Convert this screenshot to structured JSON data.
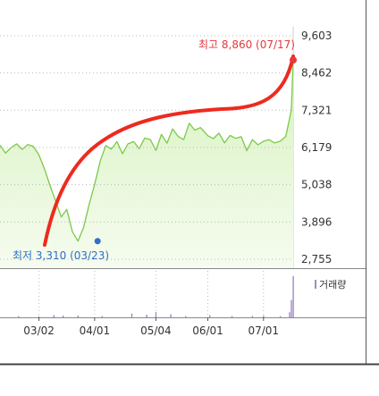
{
  "chart_data": {
    "type": "area",
    "title": "",
    "xlabel": "",
    "ylabel": "",
    "x_ticks": [
      "03/02",
      "04/01",
      "05/04",
      "06/01",
      "07/01"
    ],
    "y_ticks": [
      "9,603",
      "8,462",
      "7,321",
      "6,179",
      "5,038",
      "3,896",
      "2,755"
    ],
    "ylim": [
      2755,
      9603
    ],
    "price": {
      "dates": [
        "02/10",
        "02/13",
        "02/16",
        "02/19",
        "02/22",
        "02/25",
        "02/28",
        "03/02",
        "03/05",
        "03/08",
        "03/11",
        "03/14",
        "03/17",
        "03/20",
        "03/23",
        "03/26",
        "03/29",
        "04/01",
        "04/04",
        "04/07",
        "04/10",
        "04/13",
        "04/16",
        "04/19",
        "04/22",
        "04/25",
        "04/28",
        "05/01",
        "05/04",
        "05/07",
        "05/10",
        "05/13",
        "05/16",
        "05/19",
        "05/22",
        "05/25",
        "05/28",
        "06/01",
        "06/04",
        "06/07",
        "06/10",
        "06/13",
        "06/16",
        "06/19",
        "06/22",
        "06/25",
        "06/28",
        "07/01",
        "07/04",
        "07/07",
        "07/10",
        "07/13",
        "07/16",
        "07/17"
      ],
      "values": [
        6250,
        6010,
        6180,
        6290,
        6120,
        6270,
        6210,
        5950,
        5520,
        5000,
        4530,
        4050,
        4280,
        3600,
        3310,
        3720,
        4420,
        5050,
        5760,
        6240,
        6130,
        6360,
        5990,
        6290,
        6360,
        6140,
        6470,
        6420,
        6090,
        6580,
        6310,
        6750,
        6520,
        6420,
        6920,
        6710,
        6790,
        6540,
        6450,
        6620,
        6320,
        6550,
        6460,
        6510,
        6080,
        6420,
        6260,
        6370,
        6420,
        6320,
        6370,
        6520,
        7320,
        8860
      ]
    },
    "volume": {
      "dates": [
        "02/20",
        "03/02",
        "03/10",
        "03/15",
        "03/23",
        "04/05",
        "04/21",
        "04/29",
        "05/04",
        "05/12",
        "05/20",
        "06/02",
        "06/14",
        "06/25",
        "07/01",
        "07/10",
        "07/15",
        "07/16",
        "07/17"
      ],
      "values": [
        3,
        2,
        5,
        4,
        4,
        3,
        9,
        6,
        12,
        7,
        3,
        5,
        3,
        3,
        4,
        3,
        12,
        40,
        95
      ]
    },
    "max_label": "최고 8,860 (07/17)",
    "min_label": "최저 3,310 (03/23)",
    "legend": "거래량",
    "colors": {
      "line": "#7cc94a",
      "area_top": "#d6f2be",
      "area_bottom": "#f6fcf0",
      "max_text": "#e8383a",
      "max_dot": "#e8383a",
      "min_text": "#2f6fc9",
      "min_dot": "#2f6fc9",
      "volume": "#9c89c8",
      "trend": "#ee2a1f",
      "grid": "#bbbbbb"
    }
  }
}
